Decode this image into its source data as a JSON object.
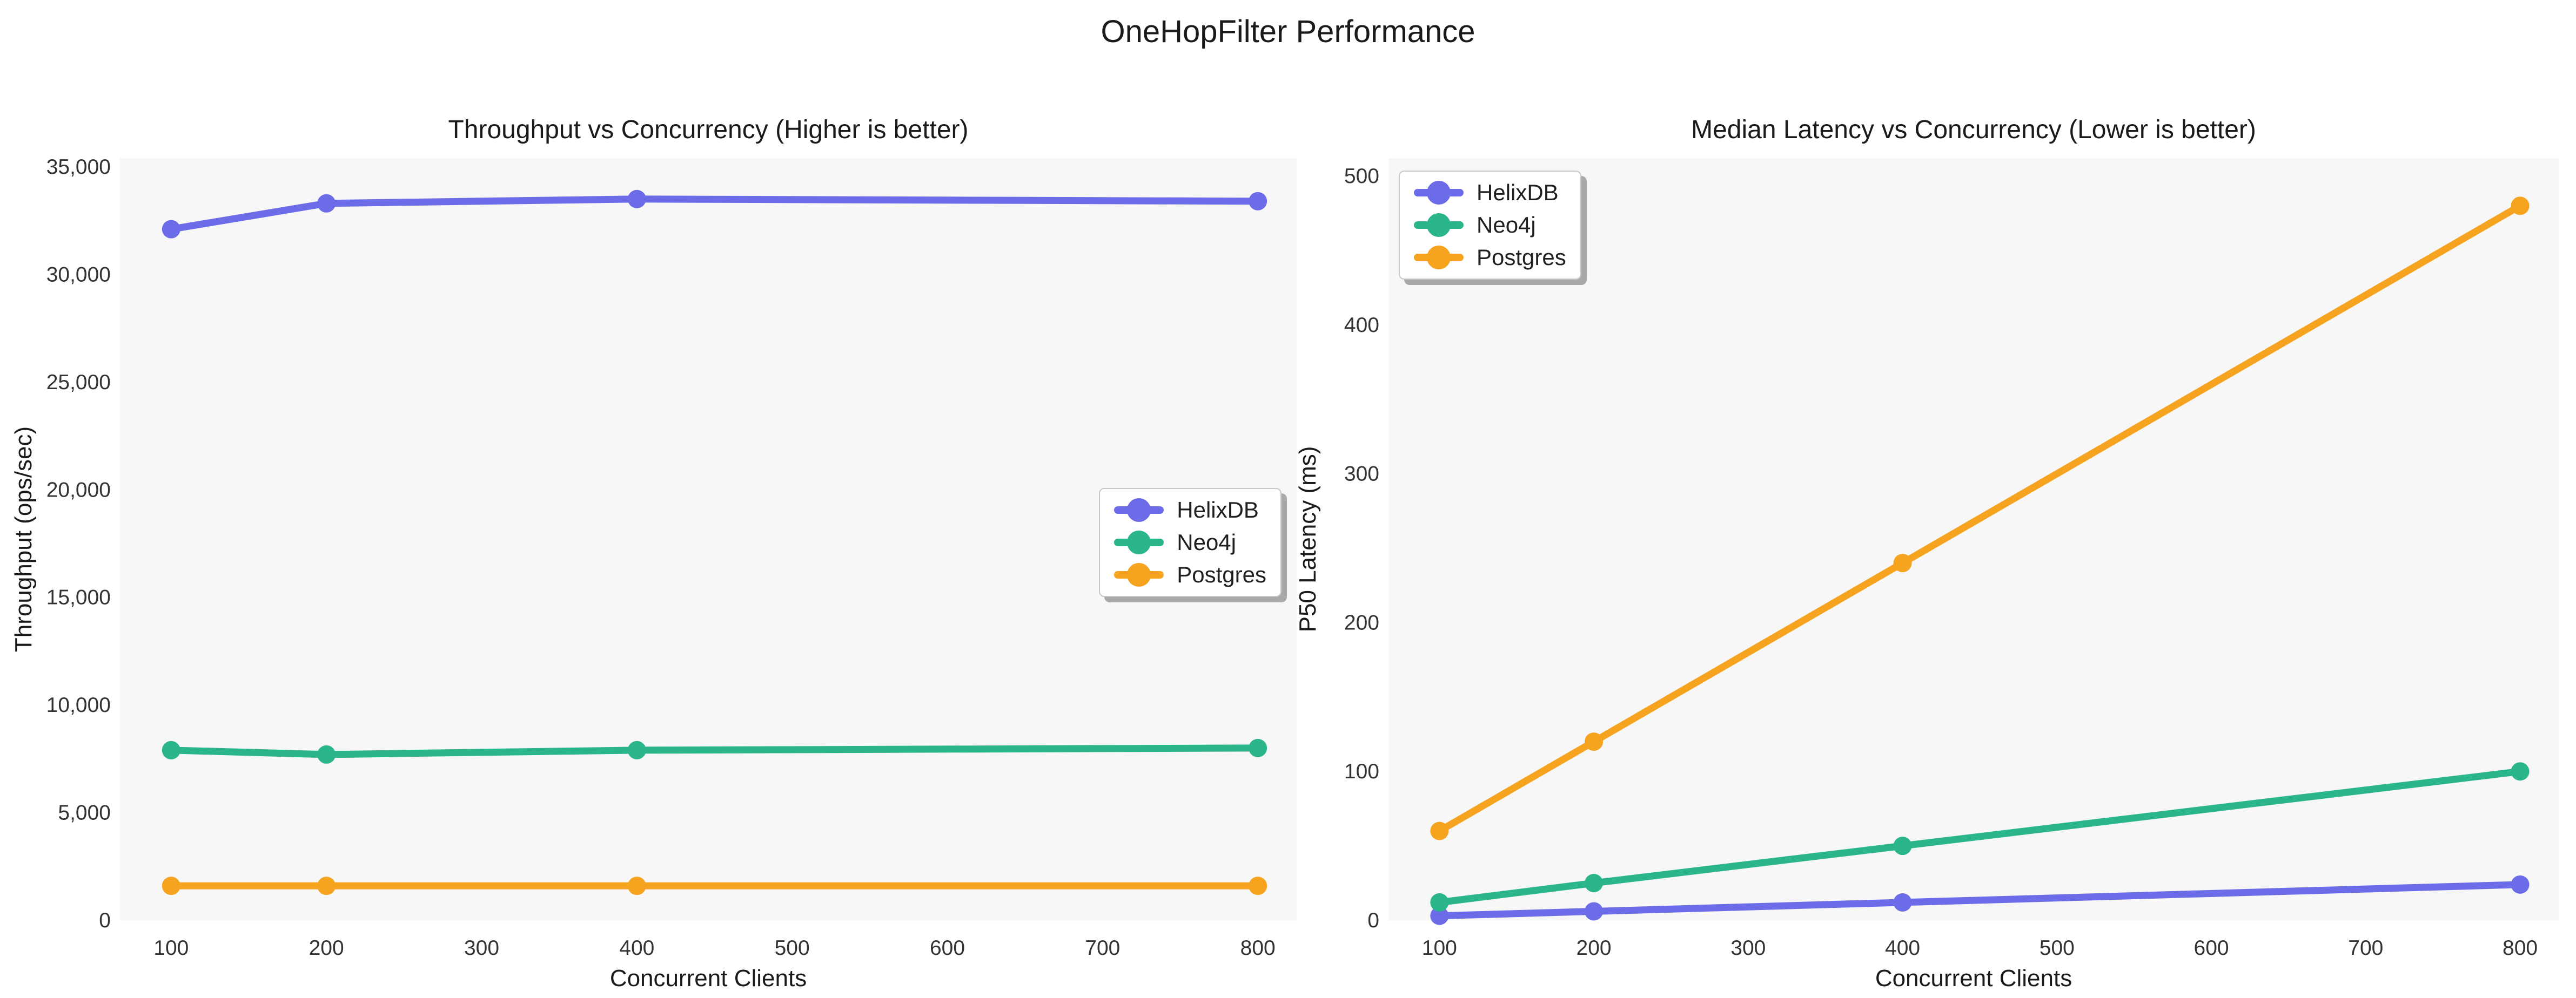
{
  "figure": {
    "title": "OneHopFilter Performance"
  },
  "colors": {
    "helixdb": "#6C6CE8",
    "neo4j": "#2BB58A",
    "postgres": "#F6A41F",
    "panel_background": "#F7F7F7",
    "title_text": "#1a1a1a",
    "tick_text": "#333333"
  },
  "chart_data": [
    {
      "type": "line",
      "title": "Throughput vs Concurrency (Higher is better)",
      "xlabel": "Concurrent Clients",
      "ylabel": "Throughput (ops/sec)",
      "x": [
        100,
        200,
        400,
        800
      ],
      "series": [
        {
          "name": "HelixDB",
          "color": "#6C6CE8",
          "values": [
            32100,
            33300,
            33500,
            33400
          ]
        },
        {
          "name": "Neo4j",
          "color": "#2BB58A",
          "values": [
            7900,
            7700,
            7900,
            8000
          ]
        },
        {
          "name": "Postgres",
          "color": "#F6A41F",
          "values": [
            1600,
            1600,
            1600,
            1600
          ]
        }
      ],
      "xlim": [
        67,
        825
      ],
      "ylim": [
        0,
        35400
      ],
      "xticks": [
        100,
        200,
        300,
        400,
        500,
        600,
        700,
        800
      ],
      "xtick_labels": [
        "100",
        "200",
        "300",
        "400",
        "500",
        "600",
        "700",
        "800"
      ],
      "yticks": [
        0,
        5000,
        10000,
        15000,
        20000,
        25000,
        30000,
        35000
      ],
      "ytick_labels": [
        "0",
        "5,000",
        "10,000",
        "15,000",
        "20,000",
        "25,000",
        "30,000",
        "35,000"
      ],
      "grid": false,
      "legend": {
        "position": "center right",
        "entries": [
          "HelixDB",
          "Neo4j",
          "Postgres"
        ]
      }
    },
    {
      "type": "line",
      "title": "Median Latency vs Concurrency (Lower is better)",
      "xlabel": "Concurrent Clients",
      "ylabel": "P50 Latency (ms)",
      "x": [
        100,
        200,
        400,
        800
      ],
      "series": [
        {
          "name": "HelixDB",
          "color": "#6C6CE8",
          "values": [
            3,
            6,
            12,
            24
          ]
        },
        {
          "name": "Neo4j",
          "color": "#2BB58A",
          "values": [
            12,
            25,
            50,
            100
          ]
        },
        {
          "name": "Postgres",
          "color": "#F6A41F",
          "values": [
            60,
            120,
            240,
            480
          ]
        }
      ],
      "xlim": [
        67,
        825
      ],
      "ylim": [
        0,
        512
      ],
      "xticks": [
        100,
        200,
        300,
        400,
        500,
        600,
        700,
        800
      ],
      "xtick_labels": [
        "100",
        "200",
        "300",
        "400",
        "500",
        "600",
        "700",
        "800"
      ],
      "yticks": [
        0,
        100,
        200,
        300,
        400,
        500
      ],
      "ytick_labels": [
        "0",
        "100",
        "200",
        "300",
        "400",
        "500"
      ],
      "grid": false,
      "legend": {
        "position": "upper left",
        "entries": [
          "HelixDB",
          "Neo4j",
          "Postgres"
        ]
      }
    }
  ]
}
